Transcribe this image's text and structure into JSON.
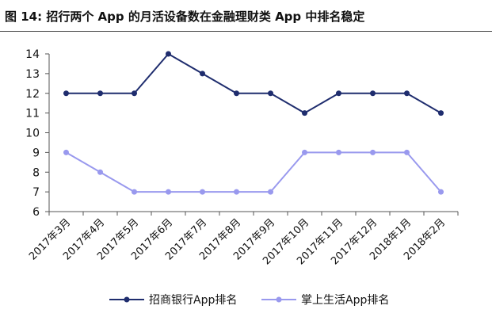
{
  "figure": {
    "title": "图 14:  招行两个 App 的月活设备数在金融理财类 App 中排名稳定"
  },
  "chart_data": {
    "type": "line",
    "title": "",
    "xlabel": "",
    "ylabel": "",
    "ylim": [
      6,
      14
    ],
    "yticks": [
      6,
      7,
      8,
      9,
      10,
      11,
      12,
      13,
      14
    ],
    "grid": false,
    "legend_position": "bottom",
    "categories": [
      "2017年3月",
      "2017年4月",
      "2017年5月",
      "2017年6月",
      "2017年7月",
      "2017年8月",
      "2017年9月",
      "2017年10月",
      "2017年11月",
      "2017年12月",
      "2018年1月",
      "2018年2月"
    ],
    "series": [
      {
        "name": "招商银行App排名",
        "color": "#1f2d6e",
        "values": [
          12,
          12,
          12,
          14,
          13,
          12,
          12,
          11,
          12,
          12,
          12,
          11
        ]
      },
      {
        "name": "掌上生活App排名",
        "color": "#9999ee",
        "values": [
          9,
          8,
          7,
          7,
          7,
          7,
          7,
          9,
          9,
          9,
          9,
          7
        ]
      }
    ]
  }
}
